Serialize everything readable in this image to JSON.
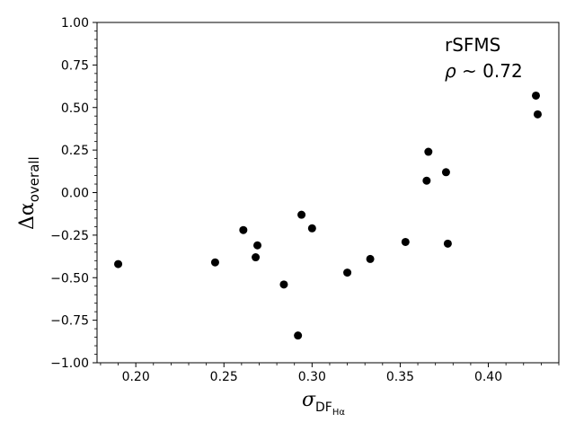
{
  "chart_data": {
    "type": "scatter",
    "xlabel": {
      "symbol": "σ",
      "subscript": "DF",
      "sub_subscript": "Hα"
    },
    "ylabel": {
      "symbol": "Δα",
      "subscript": "overall"
    },
    "annotation": {
      "line1": "rSFMS",
      "line2_symbol": "ρ",
      "line2_rest": " ~ 0.72"
    },
    "xlim": [
      0.178,
      0.44
    ],
    "ylim": [
      -1.0,
      1.0
    ],
    "x_ticks": [
      0.2,
      0.25,
      0.3,
      0.35,
      0.4
    ],
    "x_tick_labels": [
      "0.20",
      "0.25",
      "0.30",
      "0.35",
      "0.40"
    ],
    "y_ticks": [
      -1.0,
      -0.75,
      -0.5,
      -0.25,
      0.0,
      0.25,
      0.5,
      0.75,
      1.0
    ],
    "y_tick_labels": [
      "−1.00",
      "−0.75",
      "−0.50",
      "−0.25",
      "0.00",
      "0.25",
      "0.50",
      "0.75",
      "1.00"
    ],
    "grid": false,
    "marker_color": "#000000",
    "points": [
      {
        "x": 0.19,
        "y": -0.42
      },
      {
        "x": 0.245,
        "y": -0.41
      },
      {
        "x": 0.261,
        "y": -0.22
      },
      {
        "x": 0.268,
        "y": -0.38
      },
      {
        "x": 0.269,
        "y": -0.31
      },
      {
        "x": 0.284,
        "y": -0.54
      },
      {
        "x": 0.292,
        "y": -0.84
      },
      {
        "x": 0.294,
        "y": -0.13
      },
      {
        "x": 0.3,
        "y": -0.21
      },
      {
        "x": 0.32,
        "y": -0.47
      },
      {
        "x": 0.333,
        "y": -0.39
      },
      {
        "x": 0.353,
        "y": -0.29
      },
      {
        "x": 0.365,
        "y": 0.07
      },
      {
        "x": 0.366,
        "y": 0.24
      },
      {
        "x": 0.376,
        "y": 0.12
      },
      {
        "x": 0.377,
        "y": -0.3
      },
      {
        "x": 0.427,
        "y": 0.57
      },
      {
        "x": 0.428,
        "y": 0.46
      }
    ]
  }
}
